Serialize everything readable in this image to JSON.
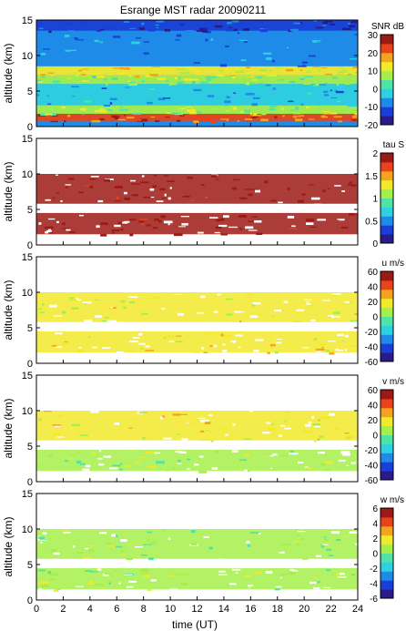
{
  "title": "Esrange MST radar 20090211",
  "xlabel": "time (UT)",
  "colormap": [
    "#2a1b8c",
    "#1a3fd6",
    "#1f8be8",
    "#2fd0e0",
    "#4fe3a6",
    "#a6ee4a",
    "#f2e92a",
    "#f5a21f",
    "#e8431a",
    "#9c1a15"
  ],
  "chart_data": [
    {
      "type": "heatmap",
      "panel": "snr",
      "ylabel": "altitude (km)",
      "colorbar_label": "SNR dB",
      "xlim": [
        0,
        24
      ],
      "ylim": [
        0,
        15
      ],
      "xticks": [],
      "yticks": [
        "0",
        "5",
        "10",
        "15"
      ],
      "clim": [
        -20,
        30
      ],
      "cticks": [
        "-20",
        "-10",
        "0",
        "10",
        "20",
        "30"
      ],
      "layers": [
        {
          "alt_min": 0.8,
          "alt_max": 1.8,
          "value": 22
        },
        {
          "alt_min": 1.8,
          "alt_max": 3.0,
          "value": 8
        },
        {
          "alt_min": 3.0,
          "alt_max": 6.0,
          "value": -5
        },
        {
          "alt_min": 6.0,
          "alt_max": 7.2,
          "value": 5
        },
        {
          "alt_min": 7.2,
          "alt_max": 8.5,
          "value": 12
        },
        {
          "alt_min": 8.5,
          "alt_max": 13.5,
          "value": -8
        },
        {
          "alt_min": 13.5,
          "alt_max": 15.0,
          "value": -14
        }
      ]
    },
    {
      "type": "heatmap",
      "panel": "tau",
      "ylabel": "altitude (km)",
      "colorbar_label": "tau S",
      "xlim": [
        0,
        24
      ],
      "ylim": [
        0,
        15
      ],
      "xticks": [],
      "yticks": [
        "0",
        "5",
        "10",
        "15"
      ],
      "clim": [
        0,
        2
      ],
      "cticks": [
        "0",
        "0.5",
        "1",
        "1.5",
        "2"
      ],
      "layers": [
        {
          "alt_min": 1.5,
          "alt_max": 4.5,
          "value": 2
        },
        {
          "alt_min": 5.8,
          "alt_max": 10.0,
          "value": 2
        }
      ]
    },
    {
      "type": "heatmap",
      "panel": "u",
      "ylabel": "altitude (km)",
      "colorbar_label": "u m/s",
      "xlim": [
        0,
        24
      ],
      "ylim": [
        0,
        15
      ],
      "xticks": [],
      "yticks": [
        "0",
        "5",
        "10",
        "15"
      ],
      "clim": [
        -60,
        60
      ],
      "cticks": [
        "-60",
        "-40",
        "-20",
        "0",
        "20",
        "40",
        "60"
      ],
      "layers": [
        {
          "alt_min": 1.5,
          "alt_max": 4.5,
          "value": 20
        },
        {
          "alt_min": 5.8,
          "alt_max": 10.0,
          "value": 15
        }
      ]
    },
    {
      "type": "heatmap",
      "panel": "v",
      "ylabel": "altitude (km)",
      "colorbar_label": "v m/s",
      "xlim": [
        0,
        24
      ],
      "ylim": [
        0,
        15
      ],
      "xticks": [],
      "yticks": [
        "0",
        "5",
        "10",
        "15"
      ],
      "clim": [
        -60,
        60
      ],
      "cticks": [
        "-60",
        "-40",
        "-20",
        "0",
        "20",
        "40",
        "60"
      ],
      "layers": [
        {
          "alt_min": 1.5,
          "alt_max": 4.5,
          "value": 8
        },
        {
          "alt_min": 5.8,
          "alt_max": 10.0,
          "value": 18
        }
      ]
    },
    {
      "type": "heatmap",
      "panel": "w",
      "ylabel": "altitude (km)",
      "colorbar_label": "w m/s",
      "xlim": [
        0,
        24
      ],
      "ylim": [
        0,
        15
      ],
      "xticks": [
        "0",
        "2",
        "4",
        "6",
        "8",
        "10",
        "12",
        "14",
        "16",
        "18",
        "20",
        "22",
        "24"
      ],
      "yticks": [
        "0",
        "5",
        "10",
        "15"
      ],
      "clim": [
        -6,
        6
      ],
      "cticks": [
        "-6",
        "-4",
        "-2",
        "0",
        "2",
        "4",
        "6"
      ],
      "layers": [
        {
          "alt_min": 1.5,
          "alt_max": 4.5,
          "value": 0.5
        },
        {
          "alt_min": 5.8,
          "alt_max": 10.0,
          "value": 0.3
        }
      ]
    }
  ]
}
